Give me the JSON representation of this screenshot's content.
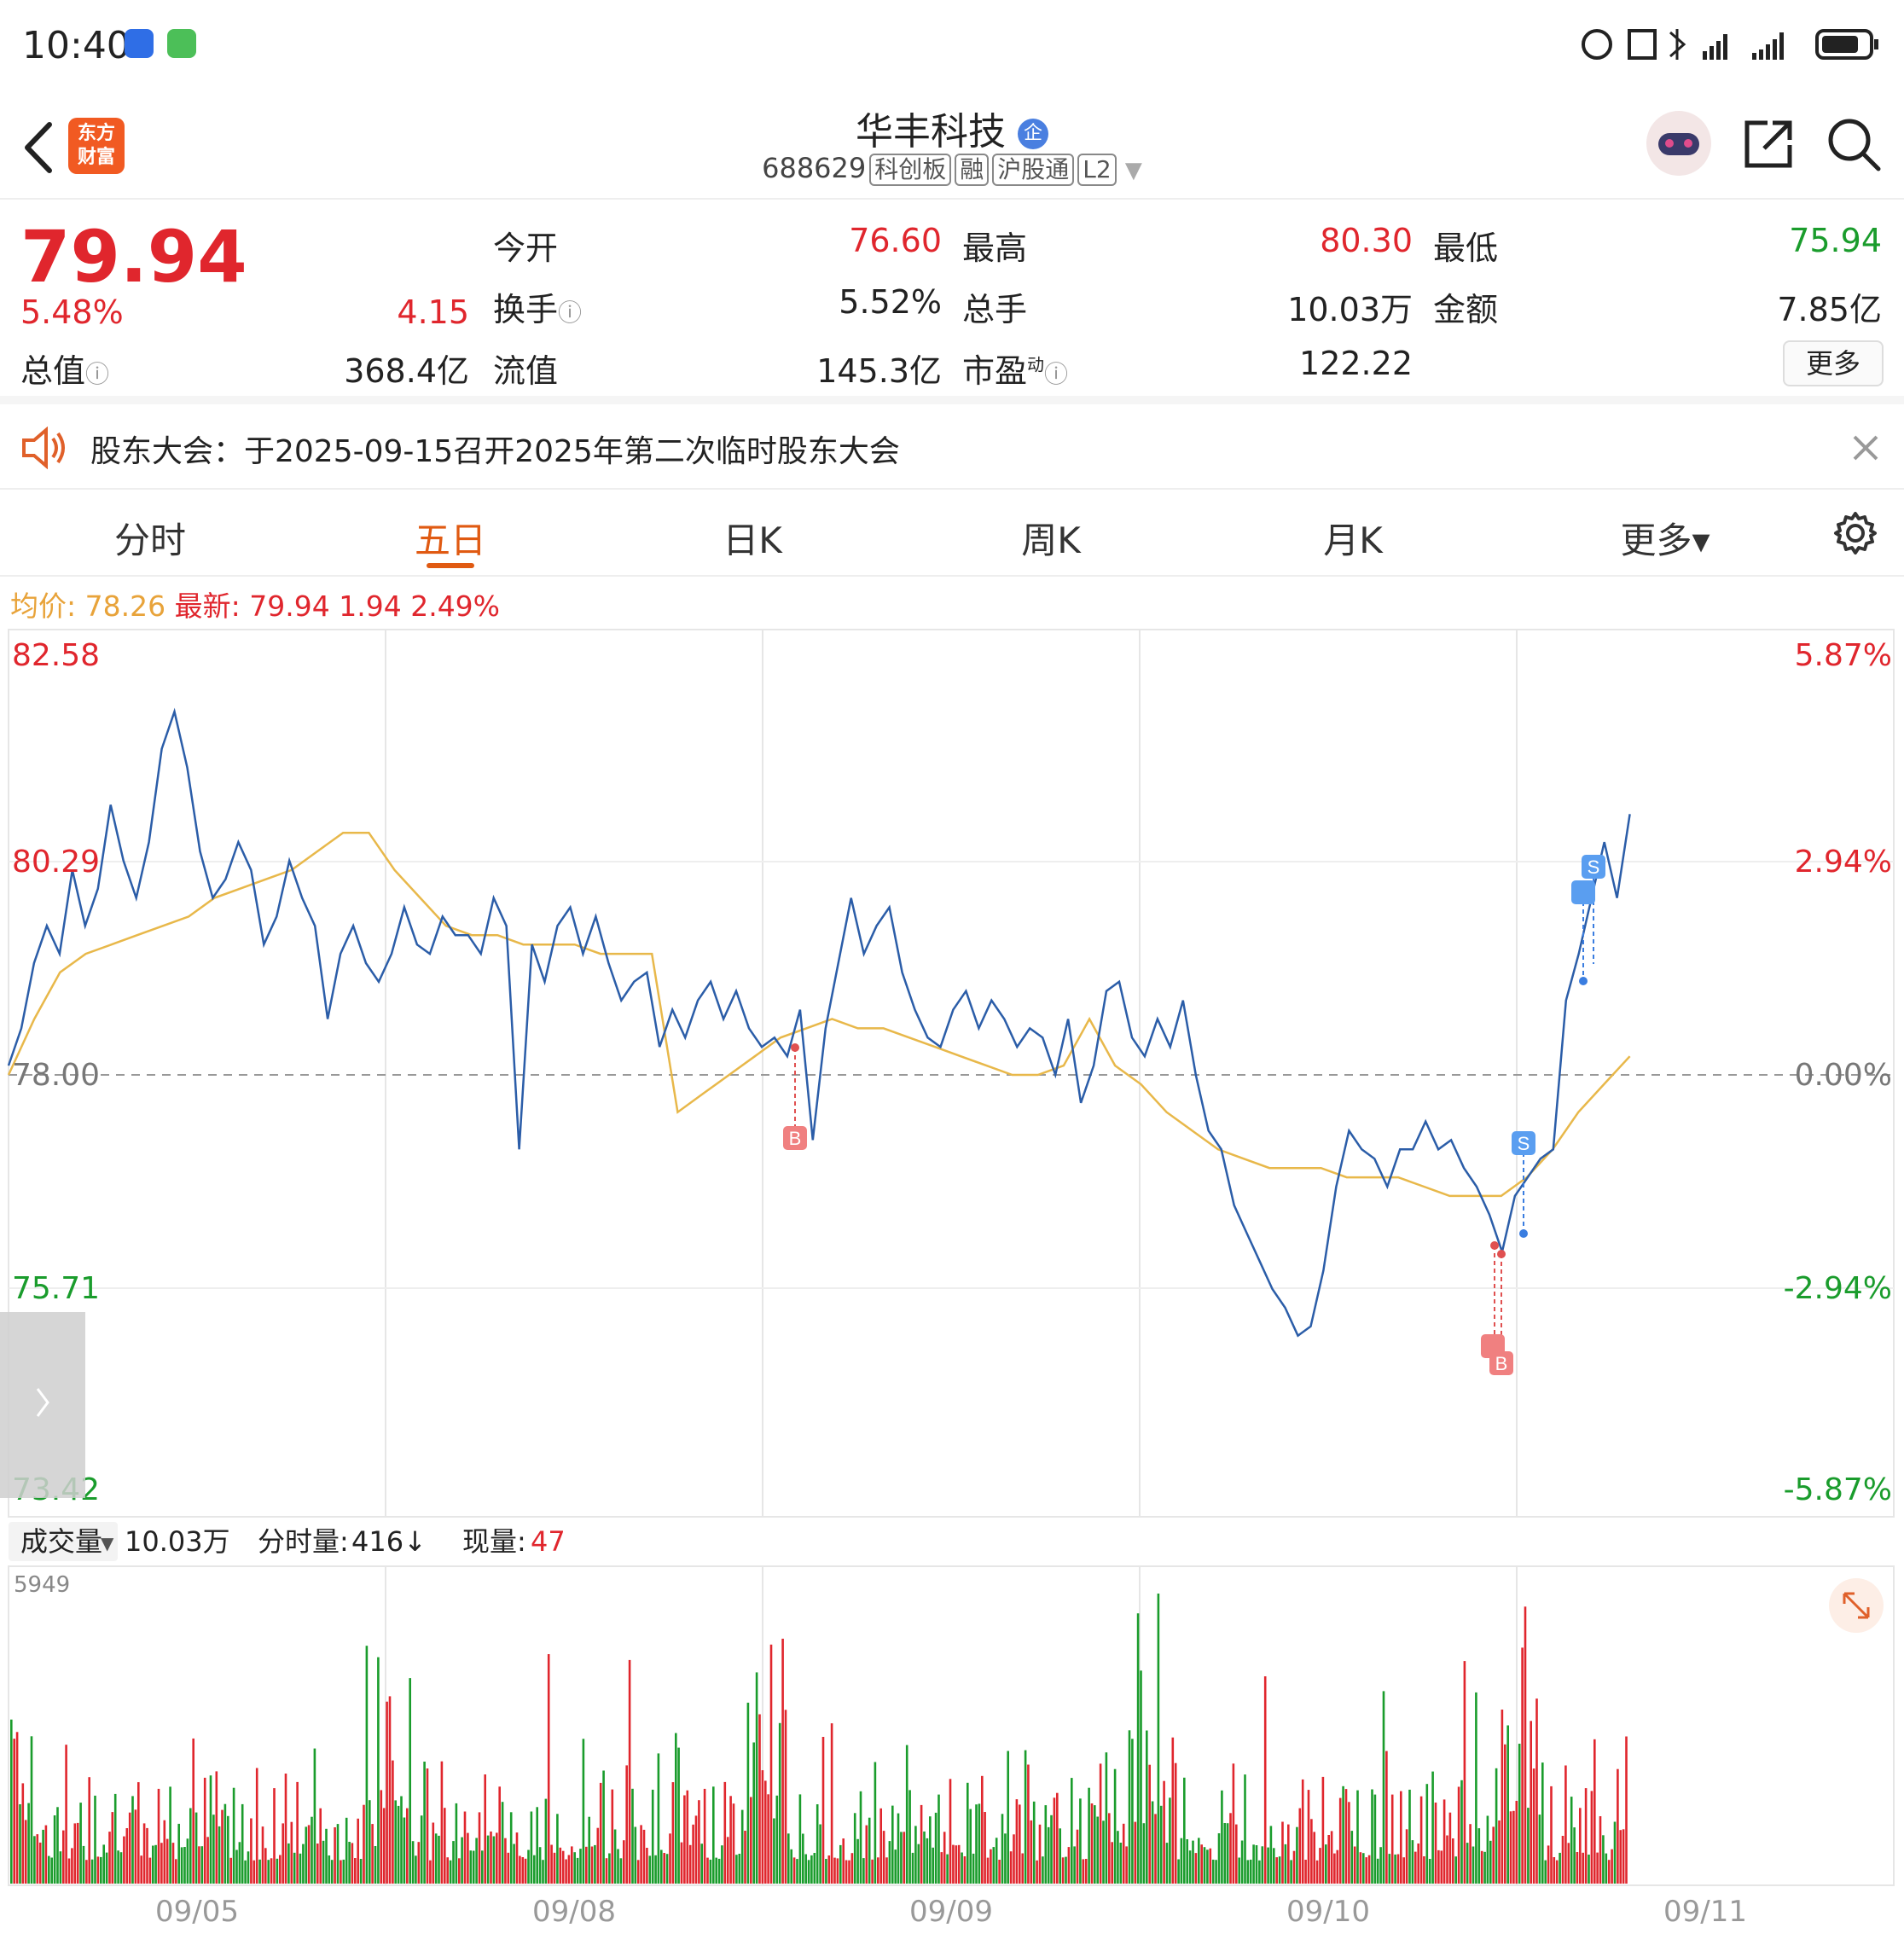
{
  "status_bar": {
    "time": "10:40"
  },
  "header": {
    "logo_text_1": "东方",
    "logo_text_2": "财富",
    "stock_name": "华丰科技",
    "stock_code": "688629",
    "tags": [
      "科创板",
      "融",
      "沪股通",
      "L2"
    ]
  },
  "quote": {
    "price": "79.94",
    "change_pct": "5.48%",
    "change": "4.15",
    "open_label": "今开",
    "open": "76.60",
    "high_label": "最高",
    "high": "80.30",
    "low_label": "最低",
    "low": "75.94",
    "turnover_label": "换手",
    "turnover": "5.52%",
    "volume_label": "总手",
    "volume": "10.03万",
    "amount_label": "金额",
    "amount": "7.85亿",
    "total_mv_label": "总值",
    "total_mv": "368.4亿",
    "float_mv_label": "流值",
    "float_mv": "145.3亿",
    "pe_label": "市盈",
    "pe_sup": "动",
    "pe": "122.22",
    "more_label": "更多"
  },
  "notice": {
    "text": "股东大会：于2025-09-15召开2025年第二次临时股东大会"
  },
  "tabs": [
    {
      "label": "分时"
    },
    {
      "label": "五日"
    },
    {
      "label": "日K"
    },
    {
      "label": "周K"
    },
    {
      "label": "月K"
    },
    {
      "label": "更多▾"
    }
  ],
  "summary": {
    "avg_label": "均价:",
    "avg_value": "78.26",
    "latest_label": "最新:",
    "latest_value": "79.94",
    "latest_change": "1.94",
    "latest_pct": "2.49%"
  },
  "chart_data": {
    "type": "line",
    "y_left_ticks": [
      "82.58",
      "80.29",
      "78.00",
      "75.71",
      "73.42"
    ],
    "y_right_ticks": [
      "5.87%",
      "2.94%",
      "0.00%",
      "-2.94%",
      "-5.87%"
    ],
    "ylim": [
      73.42,
      82.58
    ],
    "prev_close": 78.0,
    "x_labels": [
      "09/05",
      "09/08",
      "09/09",
      "09/10",
      "09/11"
    ],
    "series": [
      {
        "values": [
          78.1,
          78.5,
          79.2,
          79.6,
          79.3,
          80.2,
          79.6,
          80.0,
          80.9,
          80.3,
          79.9,
          80.5,
          81.5,
          81.9,
          81.3,
          80.4,
          79.9,
          80.1,
          80.5,
          80.2,
          79.4,
          79.7,
          80.3,
          79.9,
          79.6,
          78.6,
          79.3,
          79.6,
          79.2,
          79.0,
          79.3,
          79.8,
          79.4,
          79.3,
          79.7,
          79.5,
          79.5,
          79.3,
          79.9,
          79.6,
          77.2,
          79.4,
          79.0,
          79.6,
          79.8,
          79.3,
          79.7,
          79.2,
          78.8,
          79.0,
          79.1,
          78.3,
          78.7,
          78.4,
          78.8,
          79.0,
          78.6,
          78.9,
          78.5,
          78.3,
          78.4,
          78.2,
          78.7,
          77.3,
          78.5,
          79.2,
          79.9,
          79.3,
          79.6,
          79.8,
          79.1,
          78.7,
          78.4,
          78.3,
          78.7,
          78.9,
          78.5,
          78.8,
          78.6,
          78.3,
          78.5,
          78.4,
          78.0,
          78.6,
          77.7,
          78.1,
          78.9,
          79.0,
          78.4,
          78.2,
          78.6,
          78.3,
          78.8,
          78.0,
          77.4,
          77.2,
          76.6,
          76.3,
          76.0,
          75.7,
          75.5,
          75.2,
          75.3,
          75.9,
          76.8,
          77.4,
          77.2,
          77.1,
          76.8,
          77.2,
          77.2,
          77.5,
          77.2,
          77.3,
          77.0,
          76.8,
          76.5,
          76.1,
          76.7,
          76.9,
          77.1,
          77.2,
          78.8,
          79.3,
          79.9,
          80.5,
          79.9,
          80.8
        ],
        "note": "五日分时价格 (approximate)"
      },
      {
        "name": "均价",
        "values": [
          78.0,
          78.6,
          79.1,
          79.3,
          79.4,
          79.5,
          79.6,
          79.7,
          79.9,
          80.0,
          80.1,
          80.2,
          80.4,
          80.6,
          80.6,
          80.2,
          79.9,
          79.6,
          79.5,
          79.5,
          79.4,
          79.4,
          79.4,
          79.3,
          79.3,
          79.3,
          77.6,
          77.8,
          78.0,
          78.2,
          78.4,
          78.5,
          78.6,
          78.5,
          78.5,
          78.4,
          78.3,
          78.2,
          78.1,
          78.0,
          78.0,
          78.1,
          78.6,
          78.1,
          77.9,
          77.6,
          77.4,
          77.2,
          77.1,
          77.0,
          77.0,
          77.0,
          76.9,
          76.9,
          76.9,
          76.8,
          76.7,
          76.7,
          76.7,
          76.9,
          77.2,
          77.6,
          77.9,
          78.2
        ]
      }
    ]
  },
  "volume": {
    "label": "成交量",
    "total": "10.03万",
    "minute_label": "分时量:",
    "minute_value": "416↓",
    "current_label": "现量:",
    "current_value": "47",
    "max_tick": "5949"
  },
  "colors": {
    "up": "#e0262d",
    "down": "#1a9c2c",
    "price_line": "#2b5da8",
    "avg_line": "#e8b84a",
    "accent": "#e05a12"
  }
}
